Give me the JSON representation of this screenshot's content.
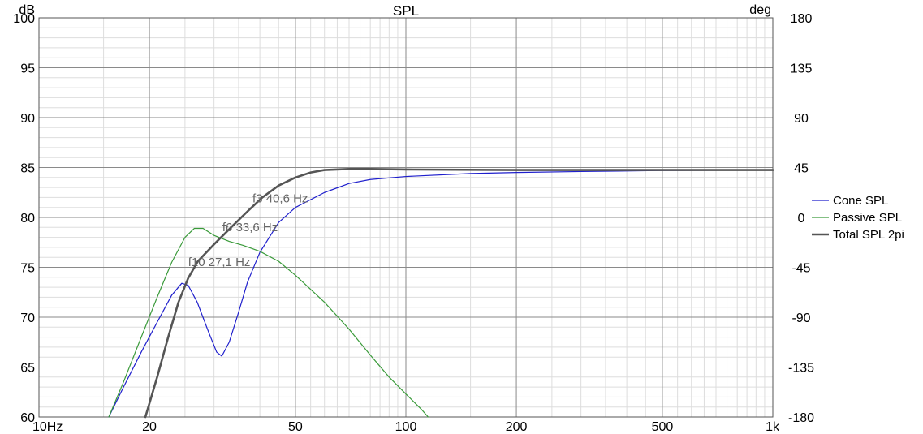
{
  "chart_data": {
    "type": "line",
    "title": "SPL",
    "ylabel_left": "dB",
    "ylabel_right": "deg",
    "x_scale": "log",
    "xlim": [
      10,
      1000
    ],
    "ylim": [
      60,
      100
    ],
    "y2lim": [
      -180,
      180
    ],
    "grid": true,
    "legend_position": "right",
    "x_ticks": [
      {
        "value": 10,
        "label": "10Hz"
      },
      {
        "value": 20,
        "label": "20"
      },
      {
        "value": 50,
        "label": "50"
      },
      {
        "value": 100,
        "label": "100"
      },
      {
        "value": 200,
        "label": "200"
      },
      {
        "value": 500,
        "label": "500"
      },
      {
        "value": 1000,
        "label": "1k"
      }
    ],
    "y_ticks": [
      60,
      65,
      70,
      75,
      80,
      85,
      90,
      95,
      100
    ],
    "y2_ticks": [
      -180,
      -135,
      -90,
      -45,
      0,
      45,
      90,
      135,
      180
    ],
    "series": [
      {
        "name": "Cone SPL",
        "color": "#1f1fcc",
        "points": [
          [
            15.5,
            60
          ],
          [
            17,
            63
          ],
          [
            19,
            66.5
          ],
          [
            21,
            69.5
          ],
          [
            23,
            72.2
          ],
          [
            24.5,
            73.4
          ],
          [
            25.5,
            73.2
          ],
          [
            27,
            71.5
          ],
          [
            29,
            68.5
          ],
          [
            30.5,
            66.5
          ],
          [
            31.5,
            66.1
          ],
          [
            33,
            67.5
          ],
          [
            35,
            70.5
          ],
          [
            37,
            73.5
          ],
          [
            40,
            76.5
          ],
          [
            45,
            79.5
          ],
          [
            50,
            81
          ],
          [
            60,
            82.5
          ],
          [
            70,
            83.4
          ],
          [
            80,
            83.8
          ],
          [
            100,
            84.1
          ],
          [
            150,
            84.4
          ],
          [
            200,
            84.5
          ],
          [
            300,
            84.6
          ],
          [
            500,
            84.7
          ],
          [
            1000,
            84.75
          ]
        ]
      },
      {
        "name": "Passive SPL",
        "color": "#3a9a3a",
        "points": [
          [
            15.5,
            60
          ],
          [
            17,
            63.5
          ],
          [
            19,
            68
          ],
          [
            21,
            72
          ],
          [
            23,
            75.5
          ],
          [
            25,
            78
          ],
          [
            26.5,
            78.9
          ],
          [
            28,
            78.9
          ],
          [
            30,
            78.2
          ],
          [
            33,
            77.6
          ],
          [
            36,
            77.2
          ],
          [
            40,
            76.6
          ],
          [
            45,
            75.6
          ],
          [
            50,
            74.2
          ],
          [
            60,
            71.5
          ],
          [
            70,
            68.8
          ],
          [
            80,
            66.2
          ],
          [
            90,
            64
          ],
          [
            100,
            62.3
          ],
          [
            110,
            60.8
          ],
          [
            115,
            60
          ]
        ]
      },
      {
        "name": "Total SPL 2pi",
        "color": "#555555",
        "points": [
          [
            19.5,
            60
          ],
          [
            21,
            64
          ],
          [
            22.5,
            68
          ],
          [
            24,
            71.5
          ],
          [
            25.5,
            73.9
          ],
          [
            27.1,
            75.6
          ],
          [
            30,
            77.3
          ],
          [
            33.6,
            79.1
          ],
          [
            37,
            80.6
          ],
          [
            40.6,
            82
          ],
          [
            45,
            83.2
          ],
          [
            50,
            84
          ],
          [
            55,
            84.5
          ],
          [
            60,
            84.75
          ],
          [
            70,
            84.85
          ],
          [
            80,
            84.85
          ],
          [
            100,
            84.8
          ],
          [
            200,
            84.75
          ],
          [
            500,
            84.75
          ],
          [
            1000,
            84.75
          ]
        ]
      }
    ],
    "annotations": [
      {
        "text": "f3 40,6 Hz",
        "x": 40.6,
        "y": 82
      },
      {
        "text": "f6 33,6 Hz",
        "x": 33.6,
        "y": 79.1
      },
      {
        "text": "f10 27,1 Hz",
        "x": 27.1,
        "y": 75.6
      }
    ]
  }
}
